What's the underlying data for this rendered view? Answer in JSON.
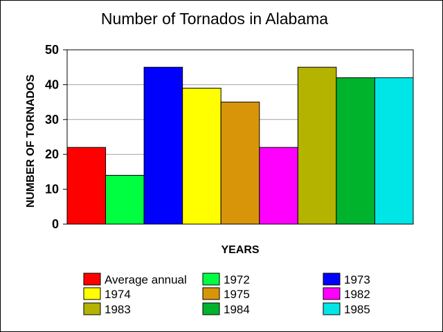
{
  "chart_data": {
    "type": "bar",
    "title": "Number of Tornados in Alabama",
    "xlabel": "YEARS",
    "ylabel": "NUMBER OF TORNADOS",
    "ylim": [
      0,
      50
    ],
    "yticks": [
      0,
      10,
      20,
      30,
      40,
      50
    ],
    "grid": true,
    "legend_position": "bottom",
    "series": [
      {
        "name": "Average annual",
        "value": 22,
        "color": "#ff0000"
      },
      {
        "name": "1972",
        "value": 14,
        "color": "#00ff40"
      },
      {
        "name": "1973",
        "value": 45,
        "color": "#0000ff"
      },
      {
        "name": "1974",
        "value": 39,
        "color": "#ffff00"
      },
      {
        "name": "1975",
        "value": 35,
        "color": "#d9950a"
      },
      {
        "name": "1982",
        "value": 22,
        "color": "#ff00ff"
      },
      {
        "name": "1983",
        "value": 45,
        "color": "#b3b300"
      },
      {
        "name": "1984",
        "value": 42,
        "color": "#00b32d"
      },
      {
        "name": "1985",
        "value": 42,
        "color": "#00e6e6"
      }
    ]
  }
}
